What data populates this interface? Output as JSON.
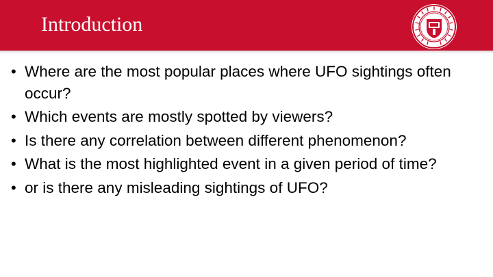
{
  "slide": {
    "title": "Introduction",
    "header_color": "#c8102e",
    "seal": {
      "icon": "university-seal-icon",
      "text": "TEXAS TECH UNIVERSITY SYSTEM"
    },
    "bullets": [
      "Where are the most popular places where UFO sightings often occur?",
      "Which events are mostly spotted by viewers?",
      "Is there any correlation between different phenomenon?",
      "What is the most highlighted event in a given period of time?",
      "or is there any misleading sightings of UFO?"
    ]
  }
}
